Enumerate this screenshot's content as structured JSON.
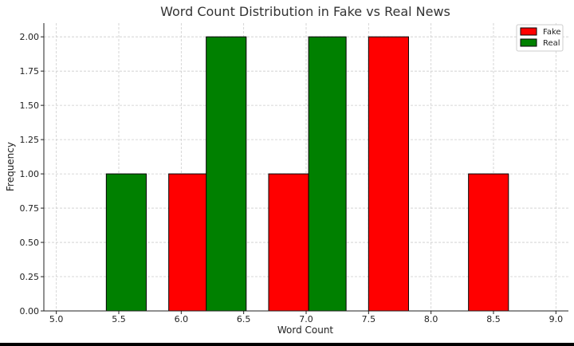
{
  "chart_data": {
    "type": "bar",
    "title": "Word Count Distribution in Fake vs Real News",
    "xlabel": "Word Count",
    "ylabel": "Frequency",
    "xlim": [
      4.9,
      9.1
    ],
    "ylim": [
      0,
      2.1
    ],
    "xticks": [
      5.0,
      5.5,
      6.0,
      6.5,
      7.0,
      7.5,
      8.0,
      8.5,
      9.0
    ],
    "xtick_labels": [
      "5.0",
      "5.5",
      "6.0",
      "6.5",
      "7.0",
      "7.5",
      "8.0",
      "8.5",
      "9.0"
    ],
    "yticks": [
      0,
      0.25,
      0.5,
      0.75,
      1.0,
      1.25,
      1.5,
      1.75,
      2.0
    ],
    "ytick_labels": [
      "0.00",
      "0.25",
      "0.50",
      "0.75",
      "1.00",
      "1.25",
      "1.50",
      "1.75",
      "2.00"
    ],
    "grid": true,
    "legend_position": "top-right",
    "series": [
      {
        "name": "Fake",
        "color": "#ff0000",
        "bars": [
          {
            "x0": 5.9,
            "x1": 6.22,
            "value": 1
          },
          {
            "x0": 6.7,
            "x1": 7.02,
            "value": 1
          },
          {
            "x0": 7.5,
            "x1": 7.82,
            "value": 2
          },
          {
            "x0": 8.3,
            "x1": 8.62,
            "value": 1
          }
        ]
      },
      {
        "name": "Real",
        "color": "#008000",
        "bars": [
          {
            "x0": 5.4,
            "x1": 5.72,
            "value": 1
          },
          {
            "x0": 6.2,
            "x1": 6.52,
            "value": 2
          },
          {
            "x0": 7.02,
            "x1": 7.32,
            "value": 2
          }
        ]
      }
    ]
  }
}
